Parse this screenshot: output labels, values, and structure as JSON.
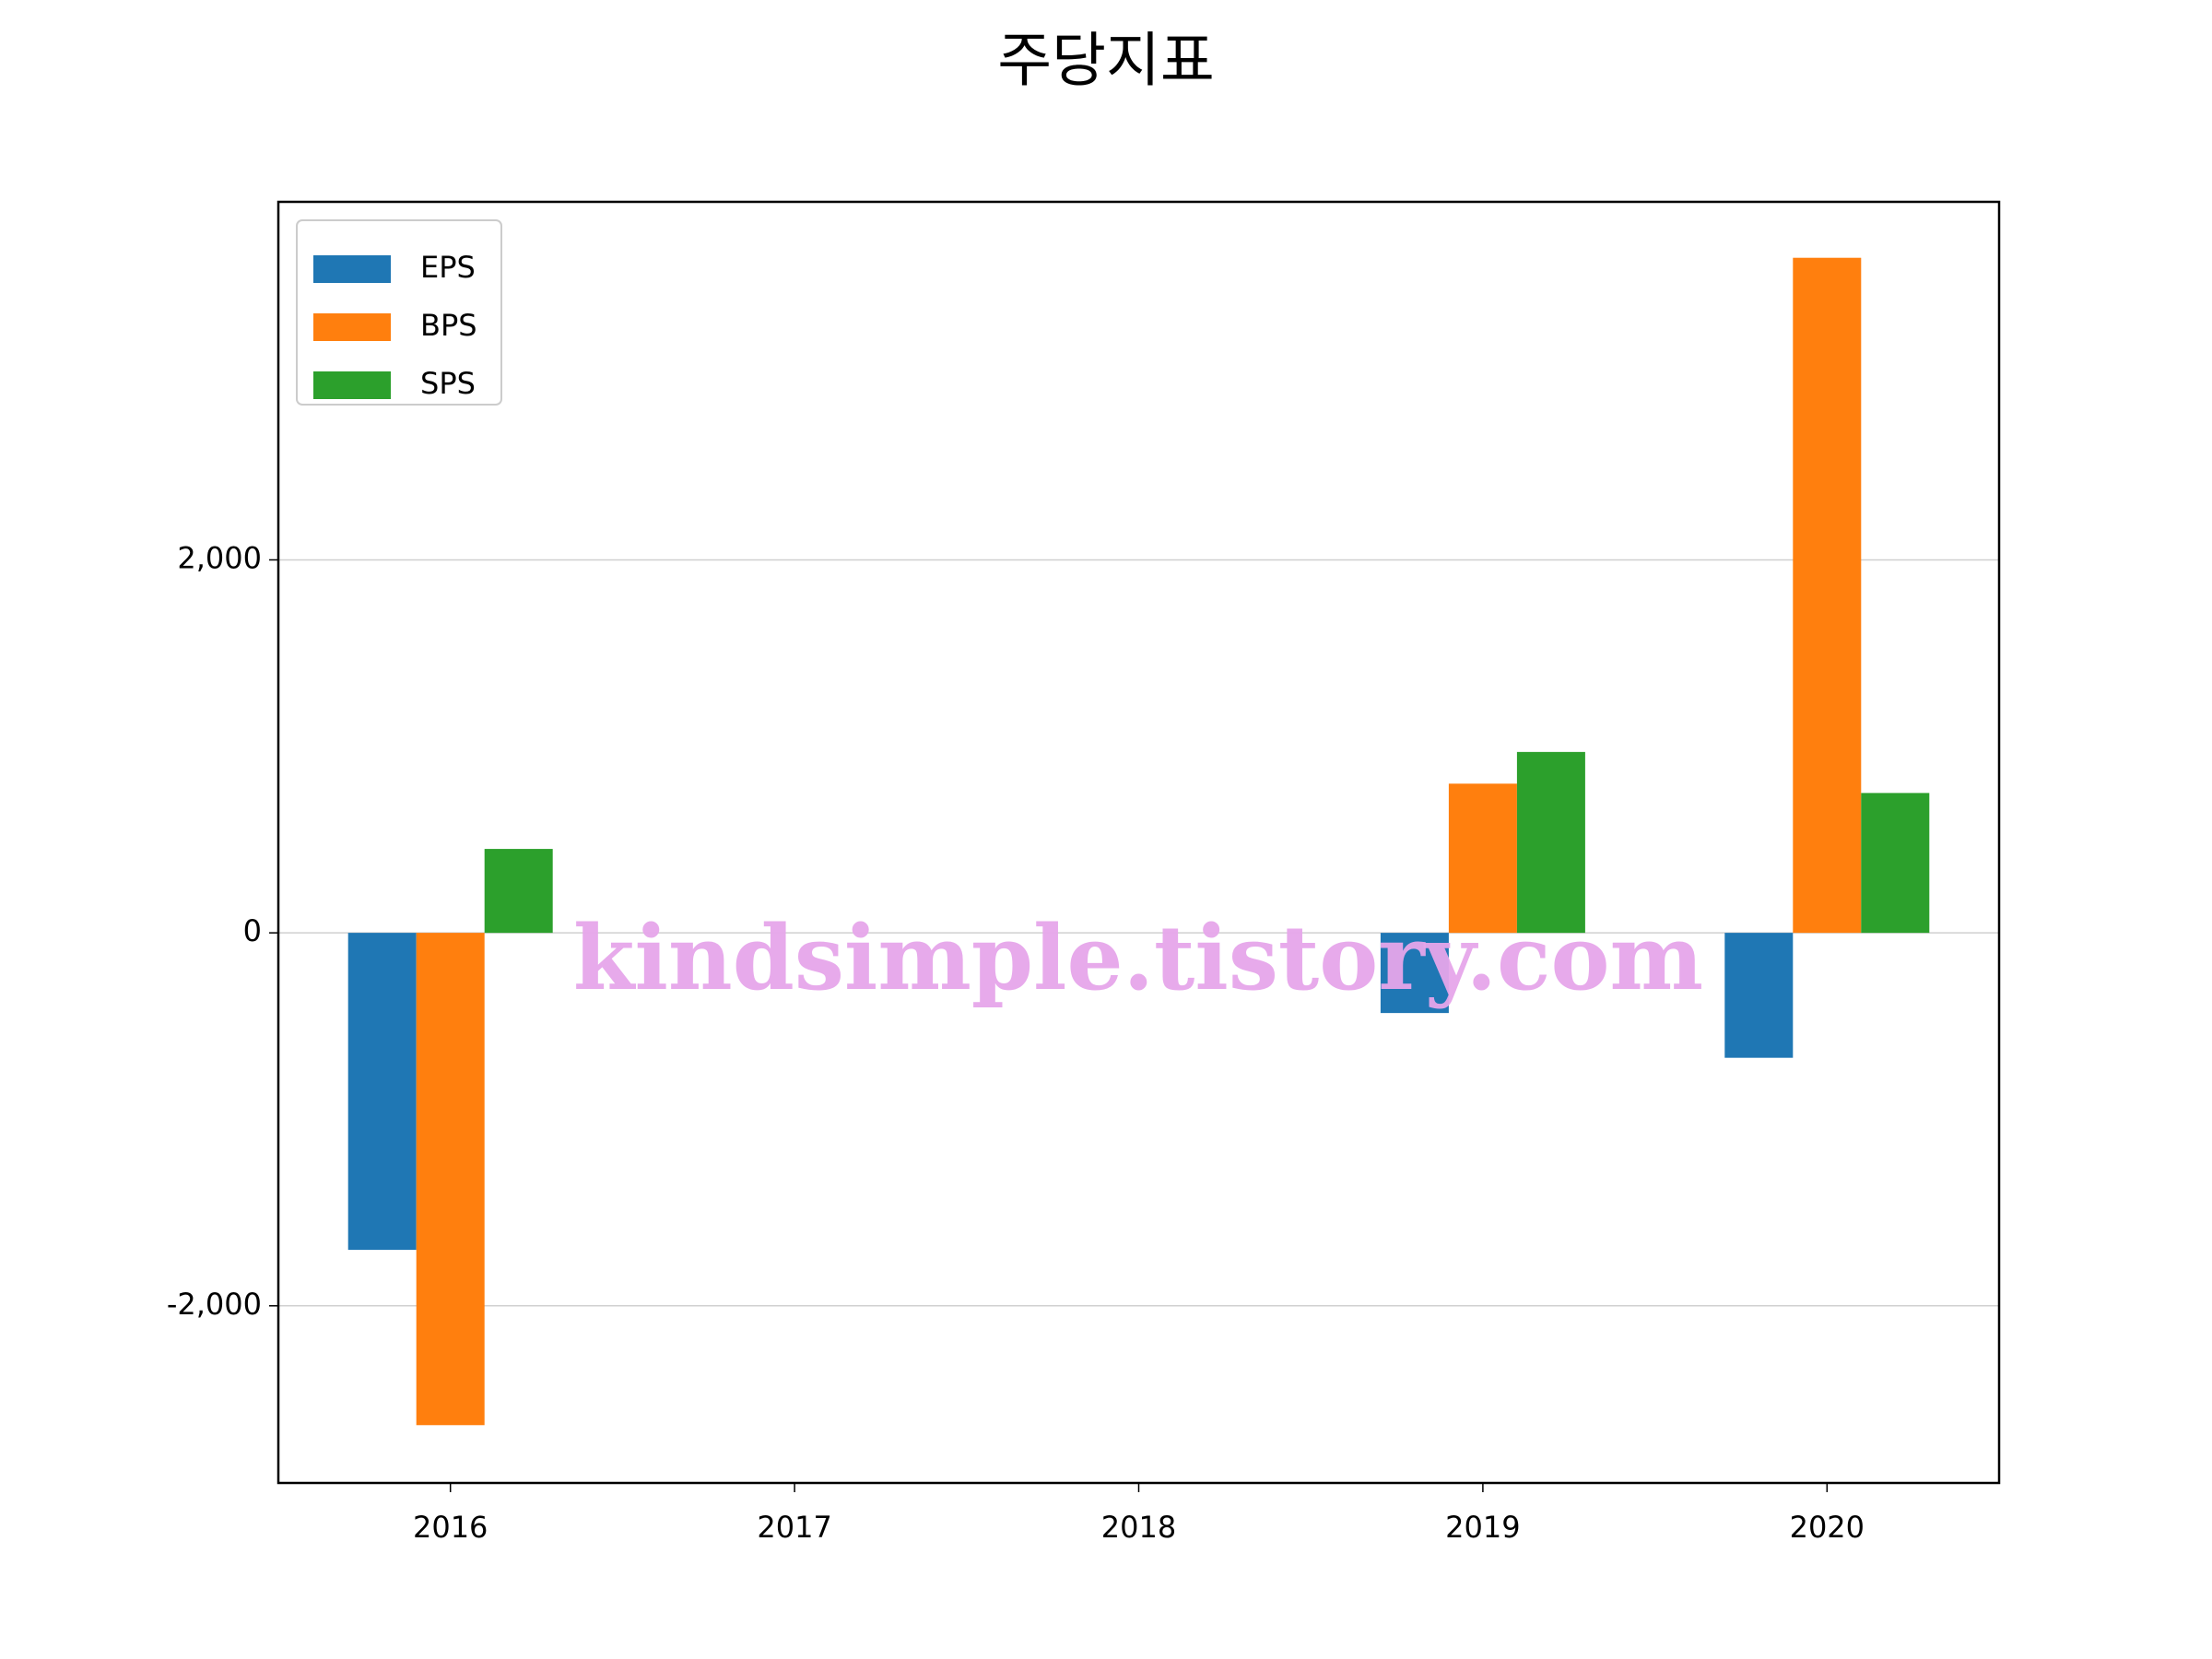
{
  "chart_data": {
    "type": "bar",
    "title": "주당지표",
    "categories": [
      "2016",
      "2017",
      "2018",
      "2019",
      "2020"
    ],
    "series": [
      {
        "name": "EPS",
        "color": "#1f77b4",
        "values": [
          -1700,
          null,
          null,
          -430,
          -670
        ]
      },
      {
        "name": "BPS",
        "color": "#ff7f0e",
        "values": [
          -2640,
          null,
          null,
          800,
          3620
        ]
      },
      {
        "name": "SPS",
        "color": "#2ca02c",
        "values": [
          450,
          null,
          null,
          970,
          750
        ]
      }
    ],
    "ylim": [
      -2950,
      3920
    ],
    "yticks": [
      {
        "value": -2000,
        "label": "-2,000"
      },
      0,
      {
        "value": 2000,
        "label": "2,000"
      }
    ],
    "grid": true,
    "legend": "upper left",
    "watermark": "kindsimple.tistory.com"
  }
}
